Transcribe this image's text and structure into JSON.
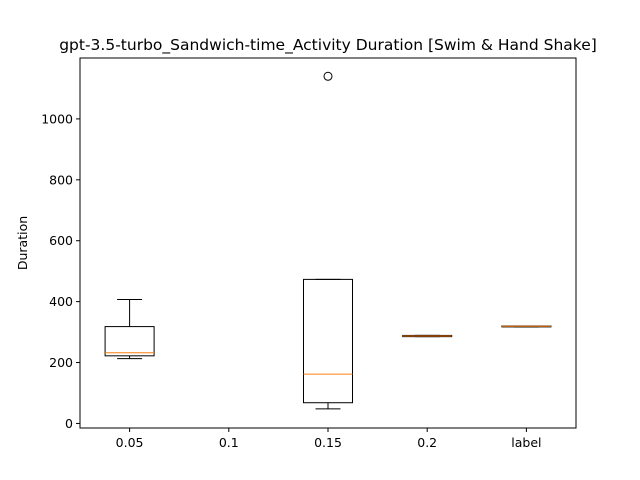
{
  "chart_data": {
    "type": "box",
    "title": "gpt-3.5-turbo_Sandwich-time_Activity Duration [Swim & Hand Shake]",
    "xlabel": "",
    "ylabel": "Duration",
    "categories": [
      "0.05",
      "0.1",
      "0.15",
      "0.2",
      "label"
    ],
    "yticks": [
      0,
      200,
      400,
      600,
      800,
      1000
    ],
    "ylim": [
      -15,
      1200
    ],
    "grid": false,
    "median_color": "#ff7f0e",
    "box_color": "#000000",
    "boxes": [
      {
        "category": "0.05",
        "whisker_low": 213,
        "q1": 222,
        "median": 232,
        "q3": 318,
        "whisker_high": 407,
        "outliers": []
      },
      {
        "category": "0.1",
        "empty": true
      },
      {
        "category": "0.15",
        "whisker_low": 48,
        "q1": 68,
        "median": 162,
        "q3": 473,
        "whisker_high": 473,
        "outliers": [
          1140
        ]
      },
      {
        "category": "0.2",
        "whisker_low": 285,
        "q1": 285,
        "median": 287,
        "q3": 289,
        "whisker_high": 289,
        "outliers": []
      },
      {
        "category": "label",
        "whisker_low": 317,
        "q1": 317,
        "median": 319,
        "q3": 320,
        "whisker_high": 320,
        "outliers": []
      }
    ]
  }
}
